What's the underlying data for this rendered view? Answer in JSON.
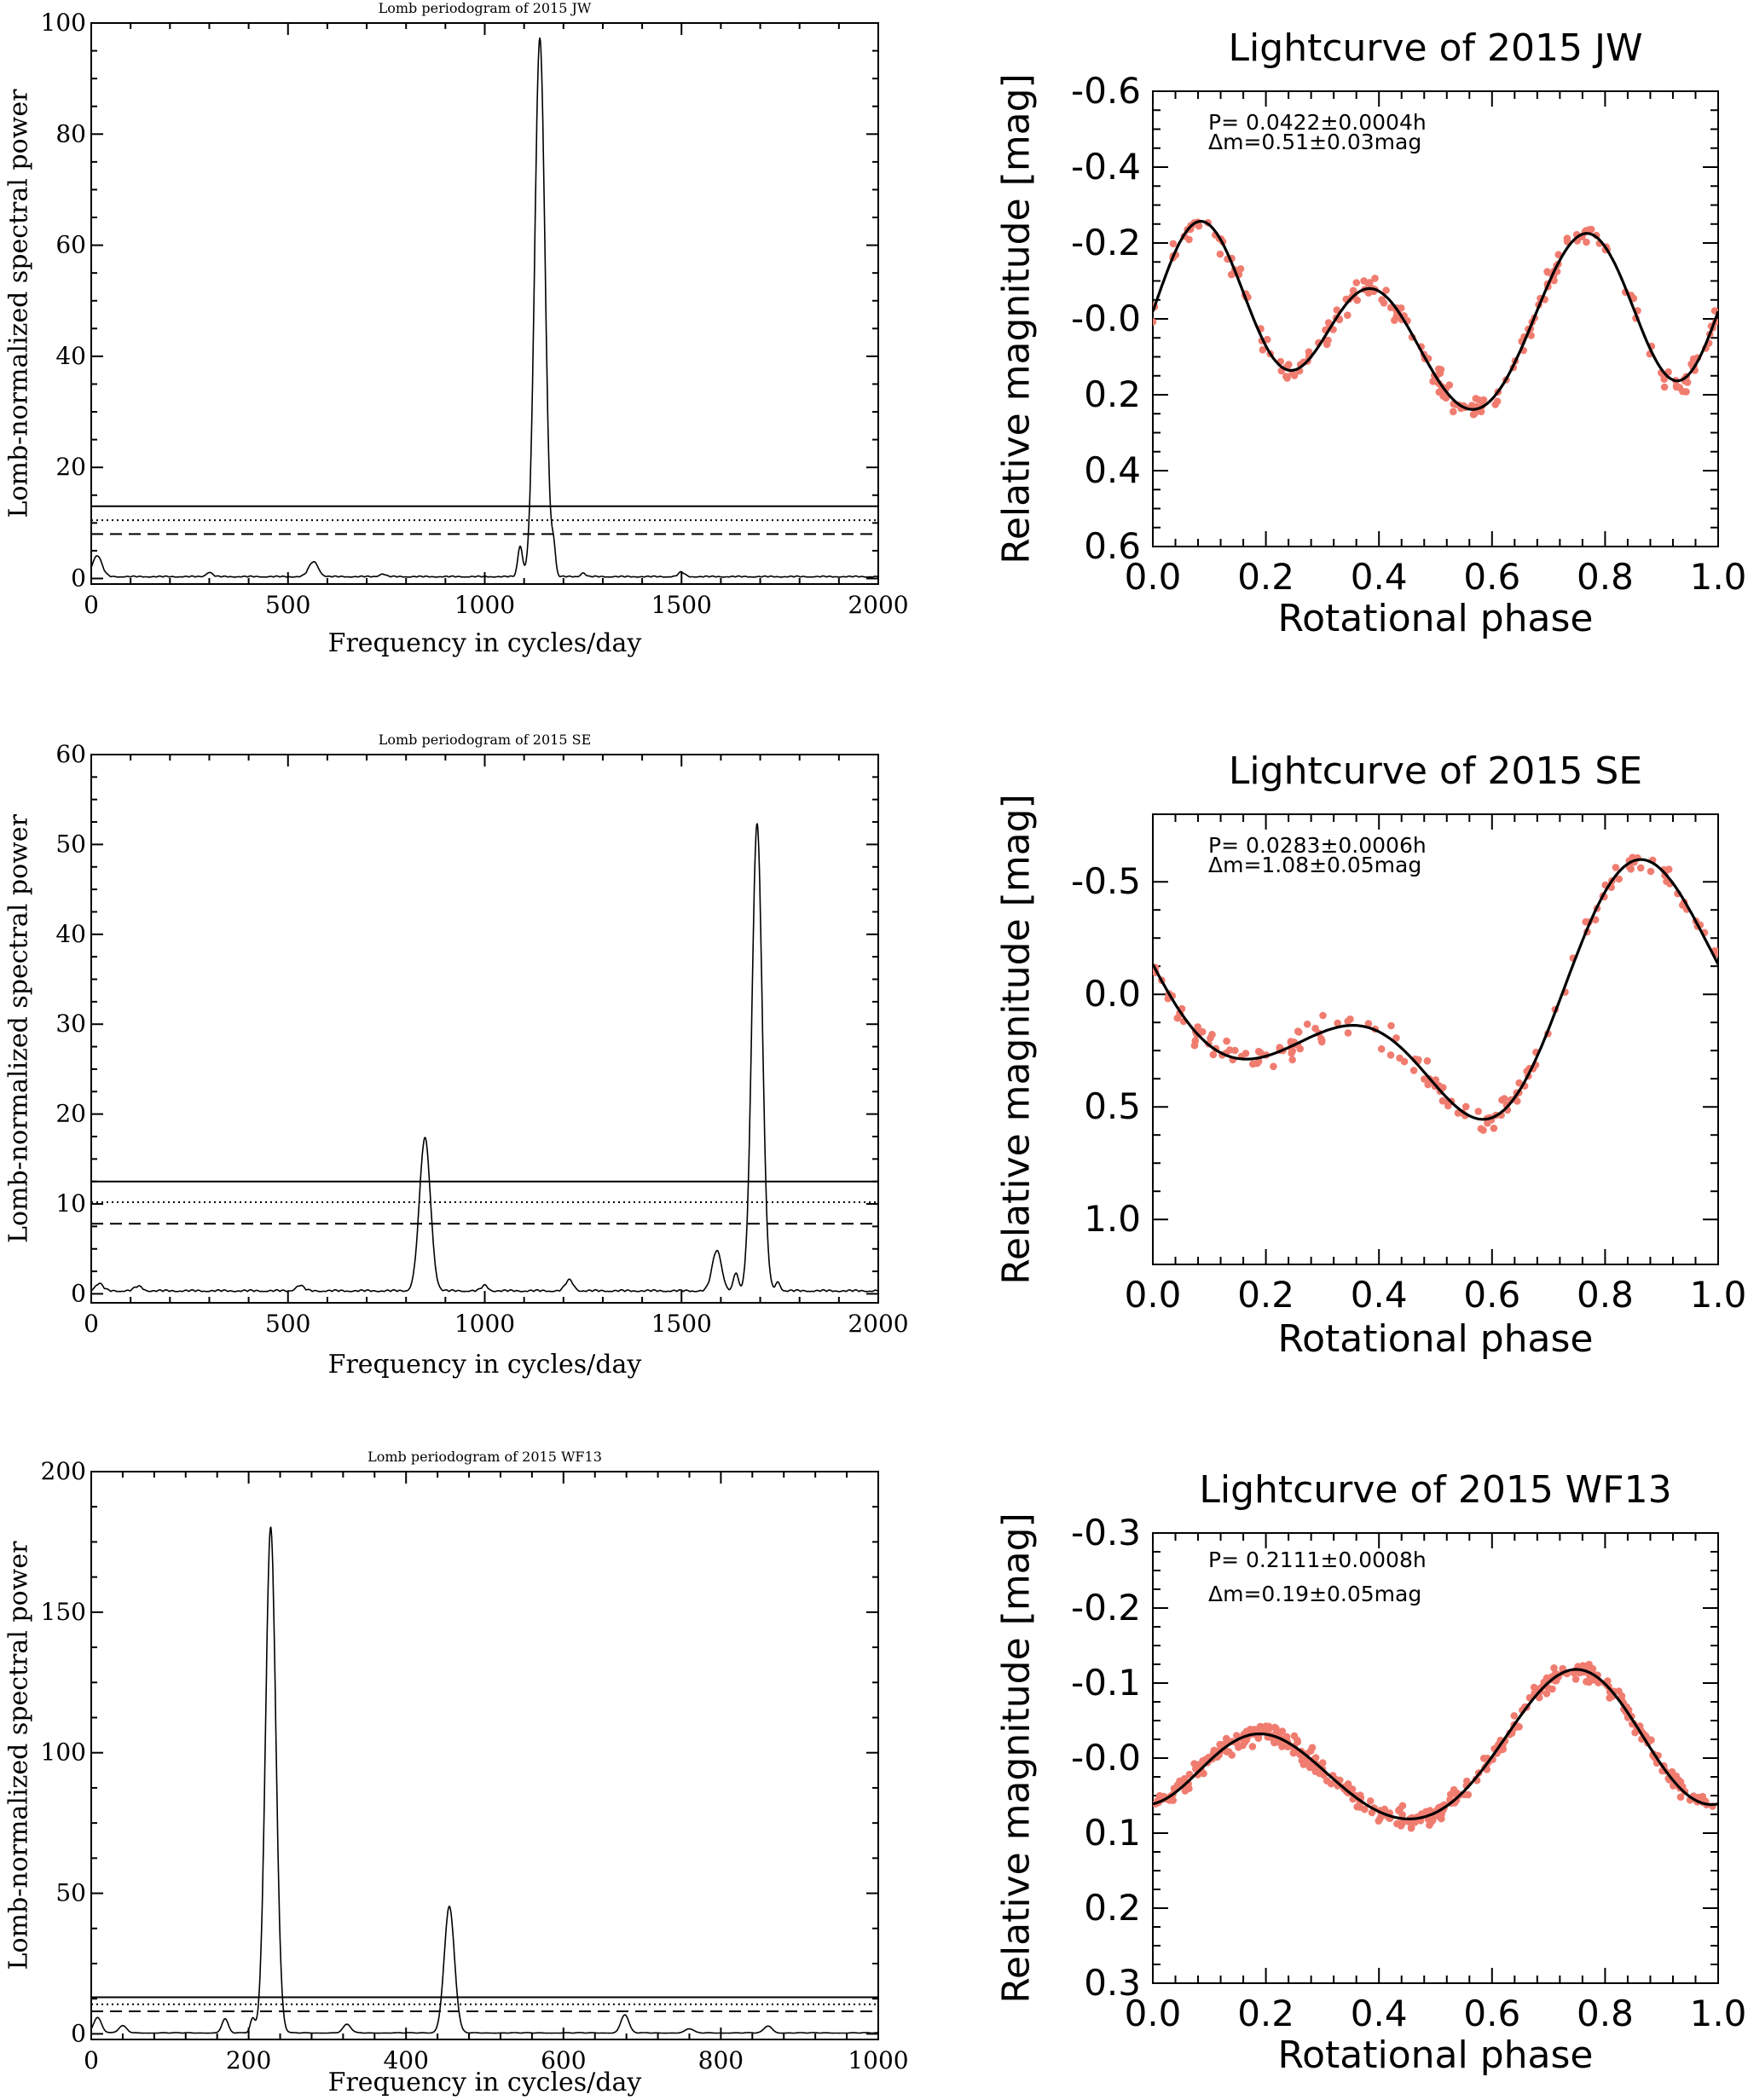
{
  "chart_data": [
    {
      "id": "p1",
      "type": "line",
      "title": "Lomb periodogram of 2015 JW",
      "xlabel": "Frequency in cycles/day",
      "ylabel": "Lomb-normalized spectral power",
      "xlim": [
        0,
        2000
      ],
      "ylim": [
        -1,
        100
      ],
      "xticks": [
        0,
        500,
        1000,
        1500,
        2000
      ],
      "yticks": [
        0,
        20,
        40,
        60,
        80,
        100
      ],
      "thresholds": {
        "solid": 13.0,
        "dotted": 10.5,
        "dashed": 8.0
      },
      "peaks": [
        {
          "x": 15,
          "h": 3.8,
          "w": 12
        },
        {
          "x": 300,
          "h": 0.8,
          "w": 8
        },
        {
          "x": 565,
          "h": 2.7,
          "w": 12
        },
        {
          "x": 740,
          "h": 0.5,
          "w": 8
        },
        {
          "x": 1090,
          "h": 5.5,
          "w": 6
        },
        {
          "x": 1140,
          "h": 97,
          "w": 13
        },
        {
          "x": 1175,
          "h": 4.8,
          "w": 5
        },
        {
          "x": 1250,
          "h": 0.7,
          "w": 6
        },
        {
          "x": 1500,
          "h": 0.8,
          "w": 8
        }
      ]
    },
    {
      "id": "p2",
      "type": "line",
      "title": "Lomb periodogram of 2015 SE",
      "xlabel": "Frequency in cycles/day",
      "ylabel": "Lomb-normalized spectral power",
      "xlim": [
        0,
        2000
      ],
      "ylim": [
        -1,
        60
      ],
      "xticks": [
        0,
        500,
        1000,
        1500,
        2000
      ],
      "yticks": [
        0,
        10,
        20,
        30,
        40,
        50,
        60
      ],
      "thresholds": {
        "solid": 12.5,
        "dotted": 10.2,
        "dashed": 7.8
      },
      "peaks": [
        {
          "x": 20,
          "h": 0.8,
          "w": 10
        },
        {
          "x": 120,
          "h": 0.5,
          "w": 10
        },
        {
          "x": 530,
          "h": 0.6,
          "w": 10
        },
        {
          "x": 848,
          "h": 17,
          "w": 14
        },
        {
          "x": 1000,
          "h": 0.6,
          "w": 8
        },
        {
          "x": 1215,
          "h": 1.2,
          "w": 10
        },
        {
          "x": 1590,
          "h": 4.5,
          "w": 12
        },
        {
          "x": 1638,
          "h": 2.0,
          "w": 6
        },
        {
          "x": 1692,
          "h": 52,
          "w": 13
        },
        {
          "x": 1745,
          "h": 1.0,
          "w": 6
        }
      ]
    },
    {
      "id": "p3",
      "type": "line",
      "title": "Lomb periodogram of 2015 WF13",
      "xlabel": "Frequency in cycles/day",
      "ylabel": "Lomb-normalized spectral power",
      "xlim": [
        0,
        1000
      ],
      "ylim": [
        -2,
        200
      ],
      "xticks": [
        0,
        200,
        400,
        600,
        800,
        1000
      ],
      "yticks": [
        0,
        50,
        100,
        150,
        200
      ],
      "thresholds": {
        "solid": 13.0,
        "dotted": 10.5,
        "dashed": 8.0
      },
      "peaks": [
        {
          "x": 8,
          "h": 5.5,
          "w": 5
        },
        {
          "x": 40,
          "h": 2.5,
          "w": 5
        },
        {
          "x": 170,
          "h": 5.0,
          "w": 4
        },
        {
          "x": 205,
          "h": 5.0,
          "w": 3
        },
        {
          "x": 228,
          "h": 180,
          "w": 6.5
        },
        {
          "x": 325,
          "h": 3.0,
          "w": 5
        },
        {
          "x": 455,
          "h": 45,
          "w": 6.5
        },
        {
          "x": 678,
          "h": 6.5,
          "w": 5
        },
        {
          "x": 760,
          "h": 1.5,
          "w": 5
        },
        {
          "x": 860,
          "h": 2.5,
          "w": 5
        }
      ]
    },
    {
      "id": "l1",
      "type": "scatter",
      "title": "Lightcurve of 2015 JW",
      "xlabel": "Rotational phase",
      "ylabel": "Relative magnitude [mag]",
      "xlim": [
        0,
        1
      ],
      "ylim": [
        -0.6,
        0.6
      ],
      "y_inverted": true,
      "xticks": [
        0.0,
        0.2,
        0.4,
        0.6,
        0.8,
        1.0
      ],
      "xtick_labels": [
        "0.0",
        "0.2",
        "0.4",
        "0.6",
        "0.8",
        "1.0"
      ],
      "yticks": [
        -0.6,
        -0.4,
        -0.2,
        0.0,
        0.2,
        0.4,
        0.6
      ],
      "ytick_labels": [
        "-0.6",
        "-0.4",
        "-0.2",
        "-0.0",
        "0.2",
        "0.4",
        "0.6"
      ],
      "annotations": [
        "P= 0.0422±0.0004h",
        "Δm=0.51±0.03mag"
      ],
      "fit": {
        "c": 0,
        "terms": [
          [
            -0.08,
            0
          ],
          [
            0.053,
            0.1
          ],
          [
            0.175,
            1.6
          ],
          [
            0.035,
            1.2
          ]
        ]
      },
      "n_points": 220,
      "noise": 0.05,
      "seed": 11,
      "point_color": "#f07c70"
    },
    {
      "id": "l2",
      "type": "scatter",
      "title": "Lightcurve of 2015 SE",
      "xlabel": "Rotational phase",
      "ylabel": "Relative magnitude [mag]",
      "xlim": [
        0,
        1
      ],
      "ylim": [
        -0.8,
        1.2
      ],
      "y_inverted": true,
      "xticks": [
        0.0,
        0.2,
        0.4,
        0.6,
        0.8,
        1.0
      ],
      "xtick_labels": [
        "0.0",
        "0.2",
        "0.4",
        "0.6",
        "0.8",
        "1.0"
      ],
      "yticks": [
        -0.5,
        0.0,
        0.5,
        1.0
      ],
      "ytick_labels": [
        "-0.5",
        "0.0",
        "0.5",
        "1.0"
      ],
      "annotations": [
        "P= 0.0283±0.0006h",
        "Δm=1.08±0.05mag"
      ],
      "fit": {
        "c": 0.08,
        "terms": [
          [
            -0.36,
            0.55
          ],
          [
            -0.31,
            1.75
          ],
          [
            0.04,
            0.3
          ]
        ]
      },
      "n_points": 170,
      "noise": 0.09,
      "seed": 23,
      "point_color": "#f07c70"
    },
    {
      "id": "l3",
      "type": "scatter",
      "title": "Lightcurve of 2015 WF13",
      "xlabel": "Rotational phase",
      "ylabel": "Relative magnitude [mag]",
      "xlim": [
        0,
        1
      ],
      "ylim": [
        -0.3,
        0.3
      ],
      "y_inverted": true,
      "xticks": [
        0.0,
        0.2,
        0.4,
        0.6,
        0.8,
        1.0
      ],
      "xtick_labels": [
        "0.0",
        "0.2",
        "0.4",
        "0.6",
        "0.8",
        "1.0"
      ],
      "yticks": [
        -0.3,
        -0.2,
        -0.1,
        0.0,
        0.1,
        0.2,
        0.3
      ],
      "ytick_labels": [
        "-0.3",
        "-0.2",
        "-0.1",
        "-0.0",
        "0.1",
        "0.2",
        "0.3"
      ],
      "annotations": [
        "P= 0.2111±0.0008h",
        "Δm=0.19±0.05mag"
      ],
      "fit": {
        "c": 0,
        "terms": [
          [
            -0.045,
            1.25
          ],
          [
            0.07,
            0.3
          ],
          [
            0.012,
            0.8
          ]
        ]
      },
      "n_points": 420,
      "noise": 0.02,
      "seed": 37,
      "point_color": "#f07c70"
    }
  ]
}
